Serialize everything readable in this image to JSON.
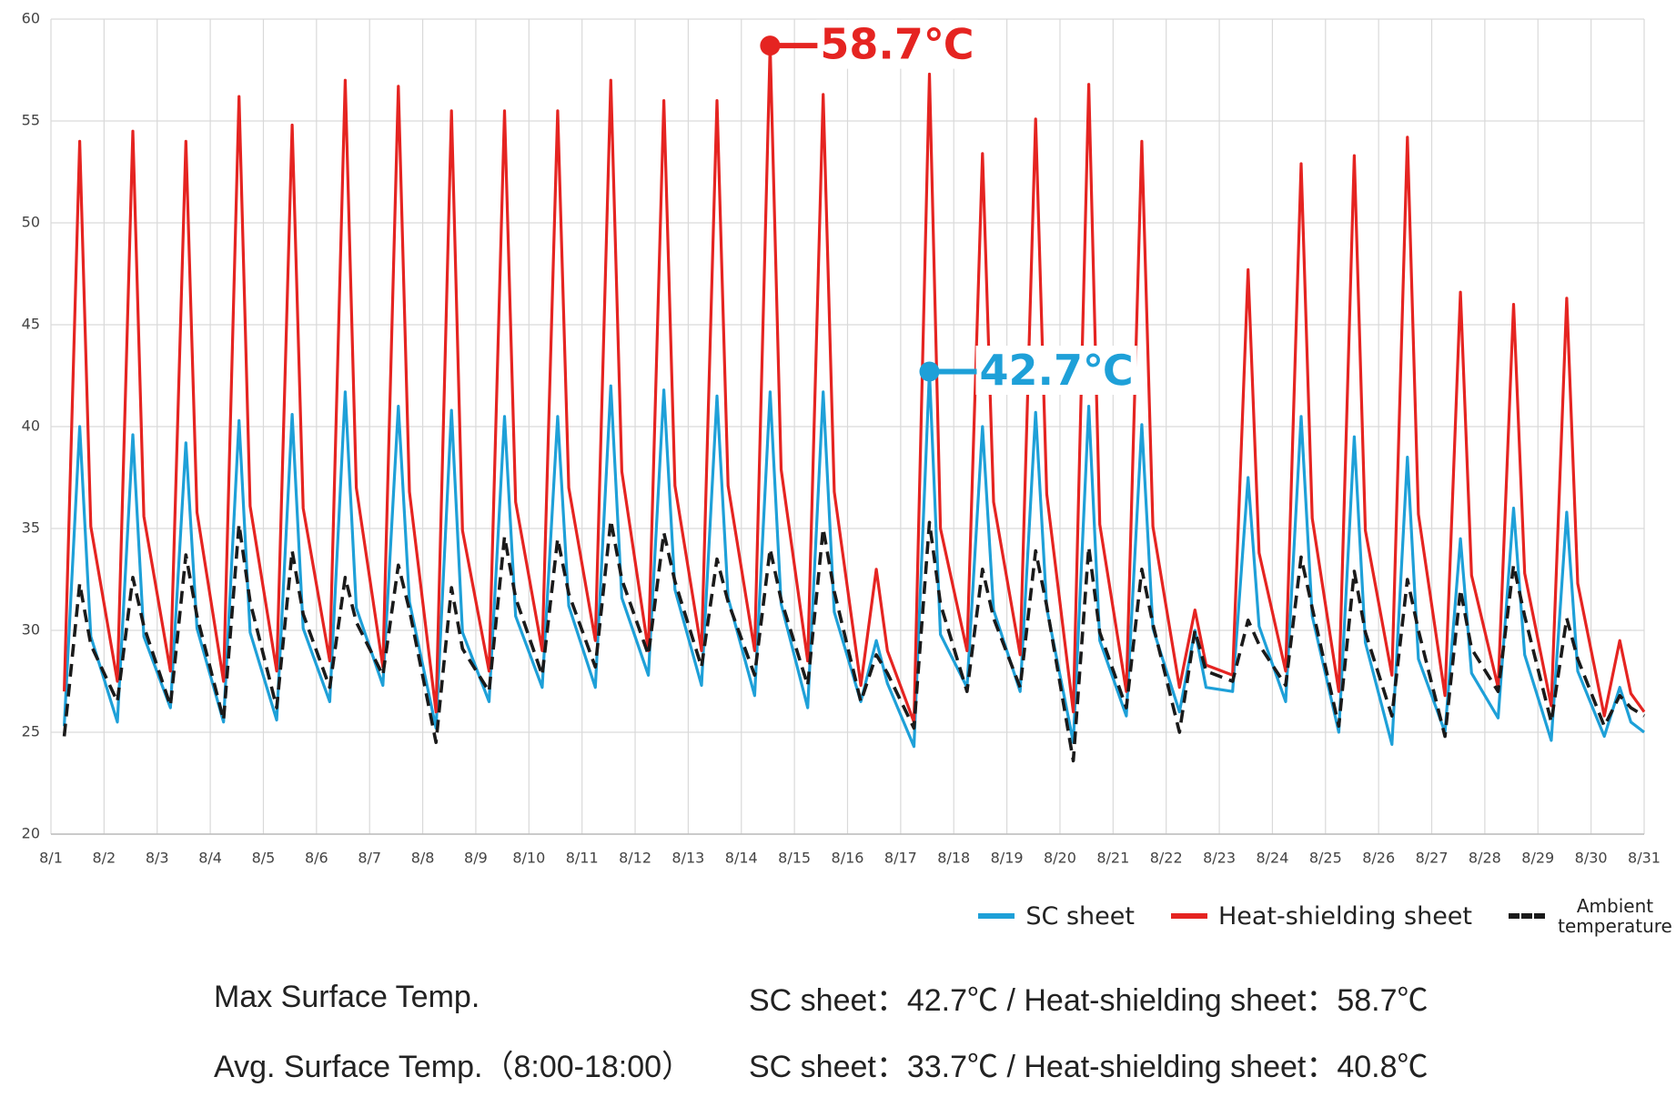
{
  "chart_data": {
    "type": "line",
    "x": [
      6,
      13,
      18,
      30,
      37,
      42,
      54,
      61,
      66,
      78,
      85,
      90,
      102,
      109,
      114,
      126,
      133,
      138,
      150,
      157,
      162,
      174,
      181,
      186,
      198,
      205,
      210,
      222,
      229,
      234,
      246,
      253,
      258,
      270,
      277,
      282,
      294,
      301,
      306,
      318,
      325,
      330,
      342,
      349,
      354,
      366,
      373,
      378,
      390,
      397,
      402,
      414,
      421,
      426,
      438,
      445,
      450,
      462,
      469,
      474,
      486,
      493,
      498,
      510,
      517,
      522,
      534,
      541,
      546,
      558,
      565,
      570,
      582,
      589,
      594,
      606,
      613,
      618,
      630,
      637,
      642,
      654,
      661,
      666,
      678,
      685,
      690,
      702,
      709,
      714,
      720
    ],
    "series": [
      {
        "name": "SC sheet",
        "color": "#1ea0d8",
        "values": [
          25.3,
          40,
          29.7,
          25.5,
          39.6,
          29.7,
          26.2,
          39.2,
          30.1,
          25.5,
          40.3,
          29.9,
          25.6,
          40.6,
          30.1,
          26.5,
          41.7,
          31.1,
          27.3,
          41,
          31.4,
          25.2,
          40.8,
          29.9,
          26.5,
          40.5,
          30.7,
          27.2,
          40.5,
          31.2,
          27.2,
          42,
          31.6,
          27.8,
          41.8,
          32,
          27.3,
          41.5,
          31.6,
          26.8,
          41.7,
          31.3,
          26.2,
          41.7,
          30.9,
          26.5,
          29.5,
          27.4,
          24.3,
          42.7,
          29.8,
          27.2,
          40,
          31,
          27,
          40.7,
          31.1,
          24.5,
          41,
          29.5,
          25.8,
          40.1,
          30.1,
          26,
          30,
          27.2,
          27,
          37.5,
          30.2,
          26.5,
          40.5,
          30.7,
          25,
          39.5,
          29.4,
          24.4,
          38.5,
          28.6,
          25,
          34.5,
          27.9,
          25.7,
          36,
          28.8,
          24.6,
          35.8,
          28,
          24.8,
          27.2,
          25.5,
          25
        ]
      },
      {
        "name": "Heat-shielding sheet",
        "color": "#e52421",
        "values": [
          27,
          54,
          35.1,
          27.5,
          54.5,
          35.6,
          28,
          54,
          35.8,
          27.5,
          56.2,
          36.1,
          28,
          54.8,
          36,
          28.5,
          57,
          37,
          28.2,
          56.7,
          36.8,
          26,
          55.5,
          34.9,
          28,
          55.5,
          36.3,
          29,
          55.5,
          37,
          29.5,
          57,
          37.8,
          29,
          56,
          37.1,
          29,
          56,
          37.1,
          29,
          58.7,
          37.9,
          28.5,
          56.3,
          36.8,
          27.3,
          33,
          29,
          25.5,
          57.3,
          35,
          29,
          53.4,
          36.3,
          28.8,
          55.1,
          36.7,
          26,
          56.8,
          35.2,
          27,
          54,
          35.1,
          27.2,
          31,
          28.3,
          27.8,
          47.7,
          33.8,
          28,
          52.9,
          35.5,
          27,
          53.3,
          34.9,
          27.8,
          54.2,
          35.7,
          26.8,
          46.6,
          32.7,
          27.2,
          46,
          32.8,
          26.3,
          46.3,
          32.3,
          25.8,
          29.5,
          26.9,
          26
        ]
      },
      {
        "name": "Ambient temperature",
        "color": "#1a1a1a",
        "dashed": true,
        "values": [
          24.8,
          32.3,
          29.3,
          26.5,
          32.6,
          30.2,
          26.3,
          33.7,
          30.7,
          25.6,
          35.2,
          31.4,
          26.2,
          33.9,
          30.8,
          27.2,
          32.6,
          30.4,
          27.8,
          33.2,
          31,
          24.5,
          32.1,
          29.1,
          27,
          34.6,
          31.6,
          27.8,
          34.5,
          31.8,
          28.2,
          35.4,
          32.5,
          28.8,
          34.8,
          32.4,
          28.2,
          33.5,
          31.4,
          27.8,
          34,
          31.5,
          27.3,
          35,
          31.9,
          26.5,
          28.8,
          27.9,
          25.2,
          35.3,
          31.3,
          27,
          33,
          30.6,
          27.2,
          33.9,
          31.2,
          23.6,
          34.1,
          29.9,
          26.2,
          33,
          30.3,
          25,
          30,
          28,
          27.5,
          30.5,
          29.3,
          27.3,
          33.6,
          31.1,
          25.3,
          32.9,
          29.9,
          25.8,
          32.5,
          30,
          24.8,
          32,
          29.1,
          27,
          33.2,
          30.7,
          25.5,
          30.6,
          28.6,
          25.3,
          26.8,
          26.2,
          25.8
        ]
      }
    ],
    "xlim": [
      0,
      720
    ],
    "xticks": [
      {
        "value": 0,
        "label": "8/1"
      },
      {
        "value": 24,
        "label": "8/2"
      },
      {
        "value": 48,
        "label": "8/3"
      },
      {
        "value": 72,
        "label": "8/4"
      },
      {
        "value": 96,
        "label": "8/5"
      },
      {
        "value": 120,
        "label": "8/6"
      },
      {
        "value": 144,
        "label": "8/7"
      },
      {
        "value": 168,
        "label": "8/8"
      },
      {
        "value": 192,
        "label": "8/9"
      },
      {
        "value": 216,
        "label": "8/10"
      },
      {
        "value": 240,
        "label": "8/11"
      },
      {
        "value": 264,
        "label": "8/12"
      },
      {
        "value": 288,
        "label": "8/13"
      },
      {
        "value": 312,
        "label": "8/14"
      },
      {
        "value": 336,
        "label": "8/15"
      },
      {
        "value": 360,
        "label": "8/16"
      },
      {
        "value": 384,
        "label": "8/17"
      },
      {
        "value": 408,
        "label": "8/18"
      },
      {
        "value": 432,
        "label": "8/19"
      },
      {
        "value": 456,
        "label": "8/20"
      },
      {
        "value": 480,
        "label": "8/21"
      },
      {
        "value": 504,
        "label": "8/22"
      },
      {
        "value": 528,
        "label": "8/23"
      },
      {
        "value": 552,
        "label": "8/24"
      },
      {
        "value": 576,
        "label": "8/25"
      },
      {
        "value": 600,
        "label": "8/26"
      },
      {
        "value": 624,
        "label": "8/27"
      },
      {
        "value": 648,
        "label": "8/28"
      },
      {
        "value": 672,
        "label": "8/29"
      },
      {
        "value": 696,
        "label": "8/30"
      },
      {
        "value": 720,
        "label": "8/31"
      }
    ],
    "ylim": [
      20,
      60
    ],
    "yticks": [
      20,
      25,
      30,
      35,
      40,
      45,
      50,
      55,
      60
    ],
    "grid": true,
    "annotations": [
      {
        "text": "58.7℃",
        "x": 325,
        "y": 58.7,
        "color": "#e52421"
      },
      {
        "text": "42.7℃",
        "x": 397,
        "y": 42.7,
        "color": "#1ea0d8"
      }
    ]
  },
  "summary": [
    {
      "label": "Max Surface Temp.",
      "text": "SC sheet：42.7℃ / Heat-shielding sheet：58.7℃"
    },
    {
      "label": "Avg. Surface Temp.（8:00-18:00）",
      "text": "SC sheet：33.7℃ / Heat-shielding sheet：40.8℃"
    }
  ]
}
